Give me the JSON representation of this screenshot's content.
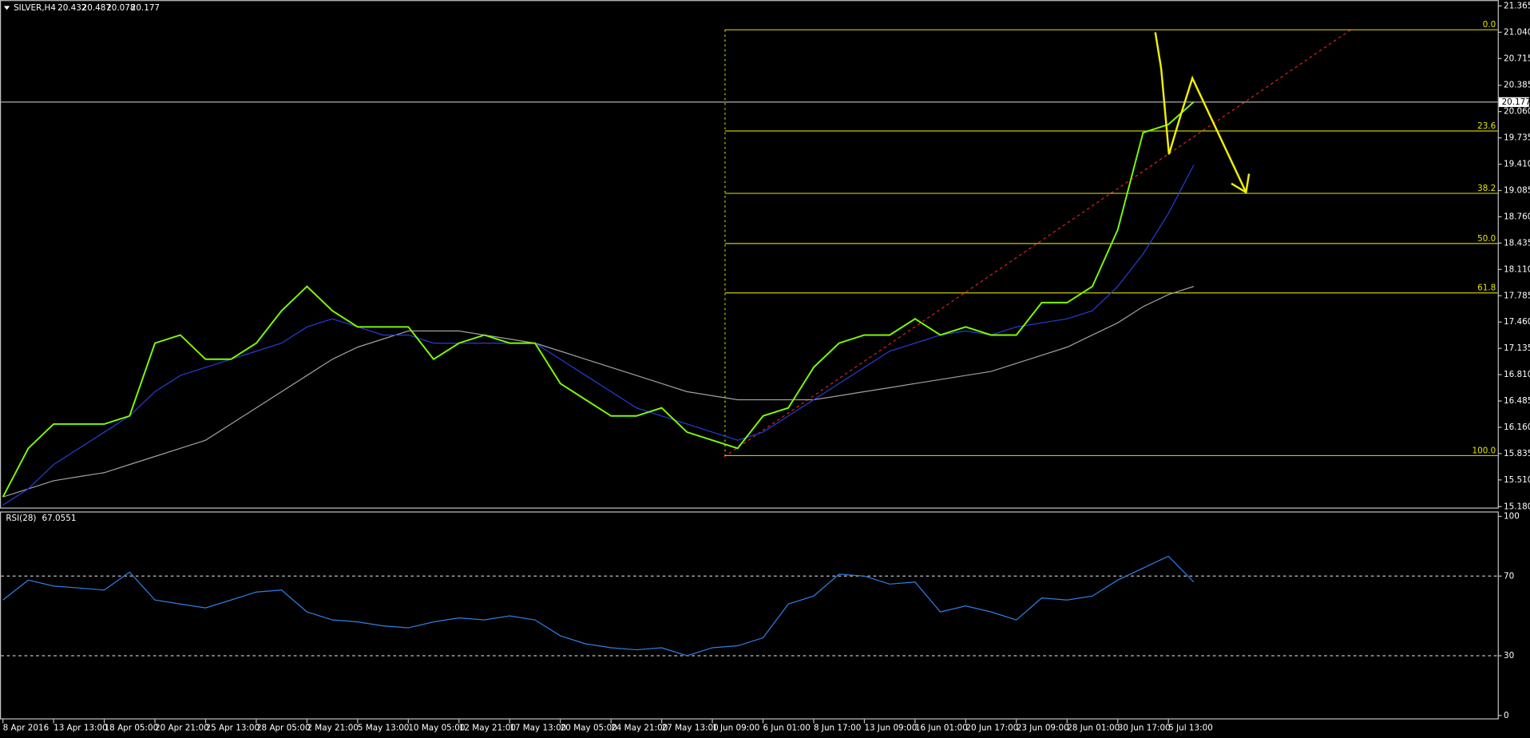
{
  "chart_data": [
    {
      "type": "line",
      "title": "SILVER,H4",
      "ohlc": [
        20.432,
        20.487,
        20.078,
        20.177
      ],
      "last_price": 20.177,
      "categories": [
        "8 Apr 2016",
        null,
        "13 Apr 13:00",
        null,
        "18 Apr 05:00",
        null,
        "20 Apr 21:00",
        null,
        "25 Apr 13:00",
        null,
        "28 Apr 05:00",
        null,
        "2 May 21:00",
        null,
        "5 May 13:00",
        null,
        "10 May 05:00",
        null,
        "12 May 21:00",
        null,
        "17 May 13:00",
        null,
        "20 May 05:00",
        null,
        "24 May 21:00",
        null,
        "27 May 13:00",
        null,
        "1 Jun 09:00",
        null,
        "6 Jun 01:00",
        null,
        "8 Jun 17:00",
        null,
        "13 Jun 09:00",
        null,
        "16 Jun 01:00",
        null,
        "20 Jun 17:00",
        null,
        "23 Jun 09:00",
        null,
        "28 Jun 01:00",
        null,
        "30 Jun 17:00",
        null,
        "5 Jul 13:00",
        null
      ],
      "xlim": [
        0,
        59
      ],
      "series": [
        {
          "color": "#7cfc00",
          "values": [
            15.3,
            15.9,
            16.2,
            16.2,
            16.2,
            16.3,
            17.2,
            17.3,
            17.0,
            17.0,
            17.2,
            17.6,
            17.9,
            17.6,
            17.4,
            17.4,
            17.4,
            17.0,
            17.2,
            17.3,
            17.2,
            17.2,
            16.7,
            16.5,
            16.3,
            16.3,
            16.4,
            16.1,
            16.0,
            15.9,
            16.3,
            16.4,
            16.9,
            17.2,
            17.3,
            17.3,
            17.5,
            17.3,
            17.4,
            17.3,
            17.3,
            17.7,
            17.7,
            17.9,
            18.6,
            19.8,
            19.9,
            20.18
          ]
        },
        {
          "color": "#2a3ad8",
          "values": [
            15.2,
            15.4,
            15.7,
            15.9,
            16.1,
            16.3,
            16.6,
            16.8,
            16.9,
            17.0,
            17.1,
            17.2,
            17.4,
            17.5,
            17.4,
            17.3,
            17.3,
            17.2,
            17.2,
            17.2,
            17.2,
            17.2,
            17.0,
            16.8,
            16.6,
            16.4,
            16.3,
            16.2,
            16.1,
            16.0,
            16.1,
            16.3,
            16.5,
            16.7,
            16.9,
            17.1,
            17.2,
            17.3,
            17.35,
            17.3,
            17.4,
            17.45,
            17.5,
            17.6,
            17.9,
            18.3,
            18.8,
            19.4
          ]
        },
        {
          "color": "#a0a0a0",
          "values": [
            15.3,
            15.4,
            15.5,
            15.55,
            15.6,
            15.7,
            15.8,
            15.9,
            16.0,
            16.2,
            16.4,
            16.6,
            16.8,
            17.0,
            17.15,
            17.25,
            17.35,
            17.35,
            17.35,
            17.3,
            17.25,
            17.2,
            17.1,
            17.0,
            16.9,
            16.8,
            16.7,
            16.6,
            16.55,
            16.5,
            16.5,
            16.5,
            16.5,
            16.55,
            16.6,
            16.65,
            16.7,
            16.75,
            16.8,
            16.85,
            16.95,
            17.05,
            17.15,
            17.3,
            17.45,
            17.65,
            17.8,
            17.9
          ]
        }
      ],
      "ylim": [
        15.156,
        21.425
      ],
      "yticks": [
        {
          "value": 15.18,
          "label": "15.180"
        },
        {
          "value": 15.51,
          "label": "15.510"
        },
        {
          "value": 15.835,
          "label": "15.835"
        },
        {
          "value": 16.16,
          "label": "16.160"
        },
        {
          "value": 16.485,
          "label": "16.485"
        },
        {
          "value": 16.81,
          "label": "16.810"
        },
        {
          "value": 17.135,
          "label": "17.135"
        },
        {
          "value": 17.46,
          "label": "17.460"
        },
        {
          "value": 17.785,
          "label": "17.785"
        },
        {
          "value": 18.11,
          "label": "18.110"
        },
        {
          "value": 18.435,
          "label": "18.435"
        },
        {
          "value": 18.76,
          "label": "18.760"
        },
        {
          "value": 19.085,
          "label": "19.085"
        },
        {
          "value": 19.41,
          "label": "19.410"
        },
        {
          "value": 19.735,
          "label": "19.735"
        },
        {
          "value": 20.06,
          "label": "20.060"
        },
        {
          "value": 20.385,
          "label": "20.385"
        },
        {
          "value": 20.715,
          "label": "20.715"
        },
        {
          "value": 21.04,
          "label": "21.040"
        },
        {
          "value": 21.365,
          "label": "21.365"
        }
      ],
      "fibonacci": {
        "start": 28.5,
        "levels": [
          {
            "label": "0.0",
            "price": 21.07
          },
          {
            "label": "23.6",
            "price": 19.82
          },
          {
            "label": "38.2",
            "price": 19.05
          },
          {
            "label": "50.0",
            "price": 18.43
          },
          {
            "label": "61.8",
            "price": 17.82
          },
          {
            "label": "100.0",
            "price": 15.81
          }
        ]
      }
    },
    {
      "type": "line",
      "title": "RSI(28)",
      "value": 67.0551,
      "series": [
        {
          "color": "#2f7fe8",
          "values": [
            58,
            68,
            65,
            64,
            63,
            72,
            58,
            56,
            54,
            58,
            62,
            63,
            52,
            48,
            47,
            45,
            44,
            47,
            49,
            48,
            50,
            48,
            40,
            36,
            34,
            33,
            34,
            30,
            34,
            35,
            39,
            56,
            60,
            71,
            70,
            66,
            67,
            52,
            55,
            52,
            48,
            59,
            58,
            60,
            68,
            74,
            80,
            67
          ]
        }
      ],
      "ylim": [
        0,
        100
      ],
      "yticks": [
        0,
        30,
        70,
        100
      ],
      "levels": [
        30,
        70
      ]
    }
  ]
}
